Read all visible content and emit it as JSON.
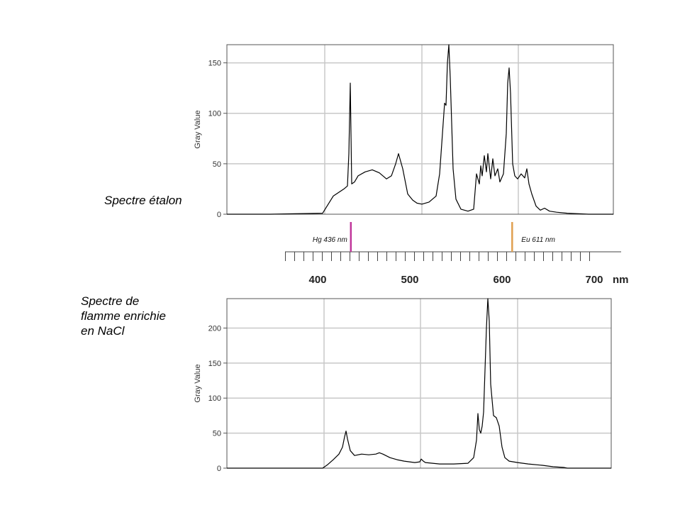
{
  "labels": {
    "etalon": "Spectre étalon",
    "flamme": [
      "Spectre de",
      "flamme enrichie",
      "en NaCl"
    ]
  },
  "chart_data": [
    {
      "type": "line",
      "name_on_page": "Spectre étalon",
      "ylabel": "Gray Value",
      "ylim": [
        0,
        168
      ],
      "yticks": [
        0,
        50,
        100,
        150
      ],
      "xlim": [
        320,
        865
      ],
      "grid": true,
      "color": "#000000",
      "series": [
        {
          "x": [
            320,
            380,
            455,
            470,
            485,
            490,
            492,
            494,
            496,
            500,
            505,
            515,
            525,
            535,
            545,
            552,
            558,
            562,
            568,
            575,
            582,
            588,
            595,
            605,
            615,
            620,
            624,
            627,
            629,
            631,
            633,
            635,
            637,
            639,
            643,
            650,
            660,
            668,
            672,
            676,
            678,
            680,
            683,
            686,
            688,
            692,
            695,
            698,
            702,
            705,
            710,
            714,
            716,
            718,
            720,
            723,
            726,
            730,
            735,
            740,
            743,
            746,
            750,
            756,
            762,
            768,
            775,
            785,
            800,
            830,
            865
          ],
          "y": [
            0,
            0,
            1,
            18,
            25,
            28,
            60,
            130,
            30,
            32,
            38,
            42,
            44,
            41,
            35,
            38,
            50,
            60,
            45,
            20,
            14,
            11,
            10,
            12,
            18,
            40,
            80,
            110,
            108,
            150,
            168,
            135,
            90,
            45,
            15,
            5,
            3,
            5,
            40,
            30,
            48,
            38,
            58,
            42,
            60,
            35,
            55,
            38,
            45,
            32,
            40,
            80,
            130,
            145,
            120,
            50,
            38,
            35,
            40,
            36,
            45,
            30,
            20,
            8,
            4,
            6,
            3,
            2,
            1,
            0,
            0
          ]
        }
      ]
    },
    {
      "type": "line",
      "name_on_page": "Spectre de flamme enrichie en NaCl",
      "ylabel": "Gray Value",
      "ylim": [
        0,
        242
      ],
      "yticks": [
        0,
        50,
        100,
        150,
        200
      ],
      "xlim": [
        320,
        862
      ],
      "grid": true,
      "color": "#000000",
      "series": [
        {
          "x": [
            320,
            400,
            455,
            462,
            470,
            478,
            483,
            486,
            488,
            490,
            494,
            500,
            510,
            520,
            530,
            535,
            540,
            550,
            560,
            570,
            585,
            592,
            594,
            597,
            600,
            610,
            620,
            640,
            660,
            668,
            672,
            674,
            676,
            678,
            680,
            682,
            684,
            686,
            688,
            690,
            692,
            696,
            700,
            704,
            708,
            712,
            718,
            730,
            745,
            765,
            780,
            795,
            800,
            862
          ],
          "y": [
            0,
            0,
            0,
            5,
            12,
            20,
            30,
            45,
            53,
            42,
            25,
            18,
            20,
            19,
            20,
            22,
            20,
            15,
            12,
            10,
            8,
            9,
            13,
            10,
            8,
            7,
            6,
            6,
            7,
            15,
            40,
            78,
            55,
            50,
            60,
            80,
            140,
            200,
            242,
            210,
            120,
            75,
            72,
            60,
            30,
            15,
            10,
            8,
            6,
            4,
            2,
            1,
            0,
            0
          ]
        }
      ]
    }
  ],
  "scale_bar": {
    "ticks": [
      400,
      500,
      600,
      700
    ],
    "unit": "nm",
    "markers": [
      {
        "label": "Hg 436 nm",
        "value": 436,
        "color": "#c0359a"
      },
      {
        "label": "Eu 611 nm",
        "value": 611,
        "color": "#e0a050"
      }
    ]
  }
}
